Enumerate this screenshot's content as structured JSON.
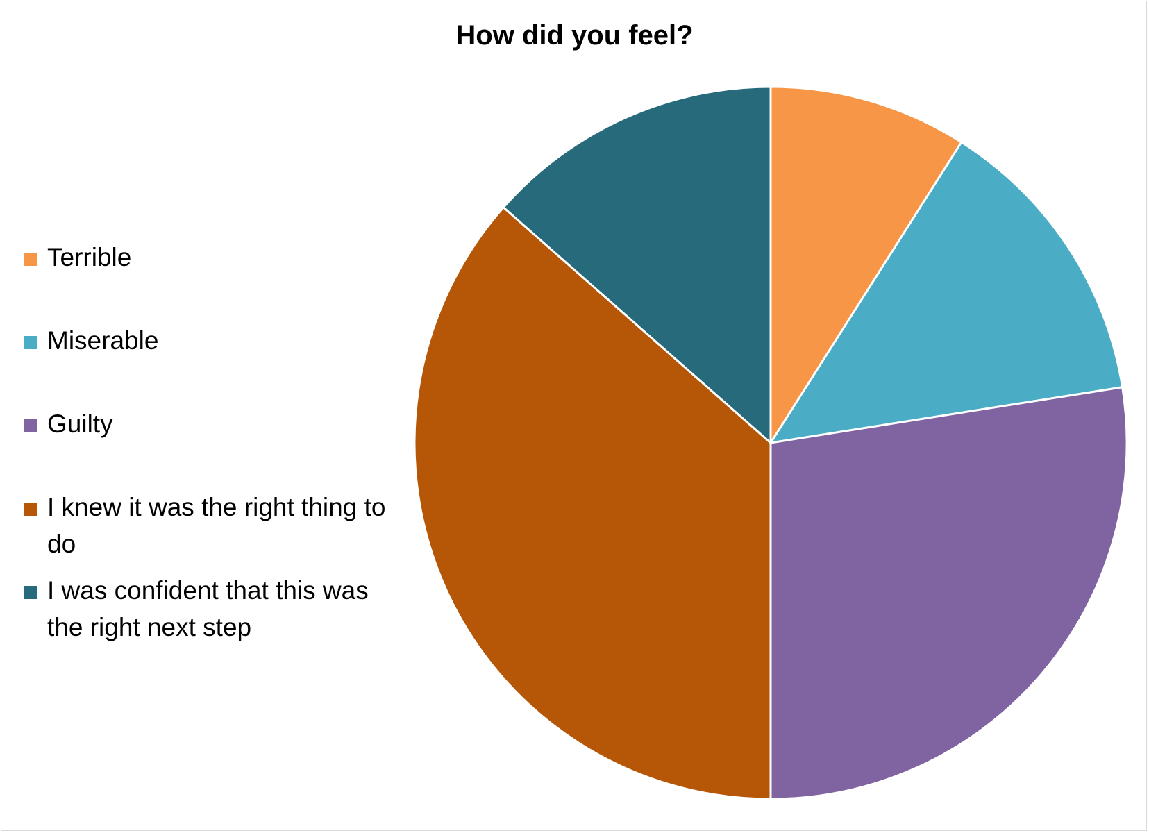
{
  "chart_data": {
    "type": "pie",
    "title": "How did you feel?",
    "legend_position": "left",
    "start_angle": "12 o'clock, clockwise",
    "slices": [
      {
        "label": "Terrible",
        "value": 9,
        "color": "#F79646"
      },
      {
        "label": "Miserable",
        "value": 13.5,
        "color": "#4BACC6"
      },
      {
        "label": "Guilty",
        "value": 27.5,
        "color": "#8064A2"
      },
      {
        "label": "I knew it was the right thing to do",
        "value": 36.5,
        "color": "#B65708"
      },
      {
        "label": "I was confident that this was the right next step",
        "value": 13.5,
        "color": "#276A7C"
      }
    ]
  }
}
